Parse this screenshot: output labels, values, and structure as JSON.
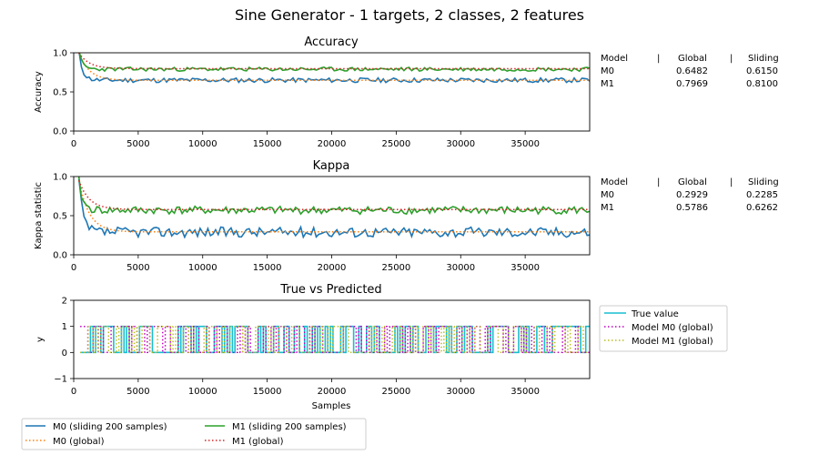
{
  "title": "Sine Generator - 1 targets, 2 classes, 2 features",
  "colors": {
    "m0_sliding": "#1f77b4",
    "m0_global": "#ff7f0e",
    "m1_sliding": "#2ca02c",
    "m1_global": "#d62728",
    "true_value": "#17becf",
    "pred_m0": "#c000c0",
    "pred_m1": "#bcbd22"
  },
  "bottom_legend": {
    "m0_sliding": "M0  (sliding 200 samples)",
    "m1_sliding": "M1  (sliding 200 samples)",
    "m0_global": "M0 (global)",
    "m1_global": "M1 (global)"
  },
  "accuracy_table": {
    "header": [
      "Model",
      "|",
      "Global",
      "|",
      "Sliding"
    ],
    "rows": [
      {
        "model": "M0",
        "global": "0.6482",
        "sliding": "0.6150"
      },
      {
        "model": "M1",
        "global": "0.7969",
        "sliding": "0.8100"
      }
    ]
  },
  "kappa_table": {
    "header": [
      "Model",
      "|",
      "Global",
      "|",
      "Sliding"
    ],
    "rows": [
      {
        "model": "M0",
        "global": "0.2929",
        "sliding": "0.2285"
      },
      {
        "model": "M1",
        "global": "0.5786",
        "sliding": "0.6262"
      }
    ]
  },
  "chart_data": [
    {
      "type": "line",
      "title": "Accuracy",
      "xlabel": "",
      "ylabel": "Accuracy",
      "xlim": [
        0,
        40000
      ],
      "ylim": [
        0.0,
        1.0
      ],
      "xticks": [
        "0",
        "5000",
        "10000",
        "15000",
        "20000",
        "25000",
        "30000",
        "35000"
      ],
      "yticks": [
        "0.0",
        "0.5",
        "1.0"
      ],
      "series": [
        {
          "name": "M0  (sliding 200 samples)",
          "style": "solid",
          "start": 1.0,
          "level": 0.65,
          "noise": 0.03,
          "seed": 11
        },
        {
          "name": "M0 (global)",
          "style": "dotted",
          "start": 1.0,
          "level": 0.648,
          "noise": 0.0,
          "seed": 0
        },
        {
          "name": "M1  (sliding 200 samples)",
          "style": "solid",
          "start": 1.0,
          "level": 0.79,
          "noise": 0.025,
          "seed": 23
        },
        {
          "name": "M1 (global)",
          "style": "dotted",
          "start": 1.0,
          "level": 0.797,
          "noise": 0.0,
          "seed": 0
        }
      ]
    },
    {
      "type": "line",
      "title": "Kappa",
      "xlabel": "",
      "ylabel": "Kappa statistic",
      "xlim": [
        0,
        40000
      ],
      "ylim": [
        0.0,
        1.0
      ],
      "xticks": [
        "0",
        "5000",
        "10000",
        "15000",
        "20000",
        "25000",
        "30000",
        "35000"
      ],
      "yticks": [
        "0.0",
        "0.5",
        "1.0"
      ],
      "series": [
        {
          "name": "M0  (sliding 200 samples)",
          "style": "solid",
          "start": 0.95,
          "level": 0.29,
          "noise": 0.065,
          "seed": 37
        },
        {
          "name": "M0 (global)",
          "style": "dotted",
          "start": 0.95,
          "level": 0.293,
          "noise": 0.0,
          "seed": 0
        },
        {
          "name": "M1  (sliding 200 samples)",
          "style": "solid",
          "start": 0.95,
          "level": 0.57,
          "noise": 0.05,
          "seed": 41
        },
        {
          "name": "M1 (global)",
          "style": "dotted",
          "start": 0.95,
          "level": 0.579,
          "noise": 0.0,
          "seed": 0
        }
      ]
    },
    {
      "type": "line",
      "title": "True vs Predicted",
      "xlabel": "Samples",
      "ylabel": "y",
      "xlim": [
        0,
        40000
      ],
      "ylim": [
        -1,
        2
      ],
      "xticks": [
        "0",
        "5000",
        "10000",
        "15000",
        "20000",
        "25000",
        "30000",
        "35000"
      ],
      "yticks": [
        "−1",
        "0",
        "1",
        "2"
      ],
      "legend": [
        "True value",
        "Model M0 (global)",
        "Model M1 (global)"
      ],
      "series": [
        {
          "name": "True value",
          "style": "solid",
          "values": "binary",
          "seed": 5
        },
        {
          "name": "Model M0 (global)",
          "style": "dotted",
          "values": "binary",
          "seed": 9
        },
        {
          "name": "Model M1 (global)",
          "style": "dotted",
          "values": "binary",
          "seed": 13
        }
      ]
    }
  ]
}
